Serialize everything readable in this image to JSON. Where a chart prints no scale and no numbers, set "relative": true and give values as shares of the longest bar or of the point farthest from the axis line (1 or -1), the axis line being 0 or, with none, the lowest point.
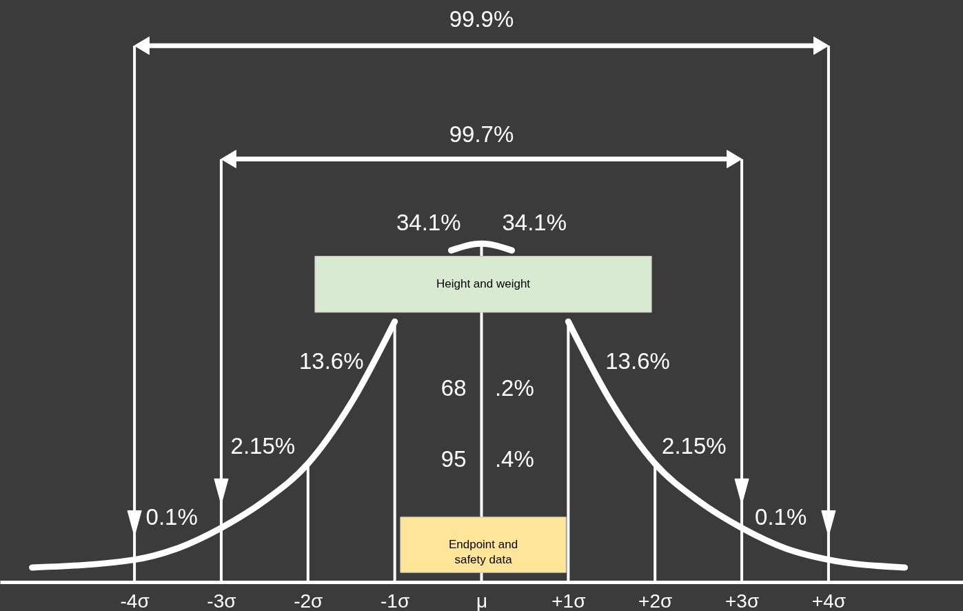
{
  "chart_data": {
    "type": "line",
    "relative": true,
    "marker": "none",
    "grid": false,
    "tick_labels": "x",
    "x": [
      -5.18,
      -4,
      -3.5,
      -3,
      -2.5,
      -2,
      -1.5,
      -1,
      -0.75,
      -0.5,
      -0.35,
      0,
      0.35,
      0.5,
      0.75,
      1,
      1.5,
      2,
      2.5,
      3,
      3.5,
      4,
      4.88
    ],
    "series": [
      {
        "color": "#ffffff",
        "values": [
          0.043,
          0.066,
          0.1,
          0.16,
          0.24,
          0.35,
          0.53,
          0.77,
          null,
          null,
          0.98,
          1,
          0.98,
          null,
          null,
          0.77,
          0.53,
          0.35,
          0.24,
          0.16,
          0.1,
          0.066,
          0.043
        ]
      }
    ],
    "xlim": [
      -5.55,
      5.55
    ],
    "xticks": [
      {
        "value": -4,
        "label": "-4σ"
      },
      {
        "value": -3,
        "label": "-3σ"
      },
      {
        "value": -2,
        "label": "-2σ"
      },
      {
        "value": -1,
        "label": "-1σ"
      },
      {
        "value": 0,
        "label": "μ"
      },
      {
        "value": 1,
        "label": "+1σ"
      },
      {
        "value": 2,
        "label": "+2σ"
      },
      {
        "value": 3,
        "label": "+3σ"
      },
      {
        "value": 4,
        "label": "+4σ"
      }
    ],
    "ref_lines": [
      {
        "axis": "x",
        "value": -4,
        "color": "#ffffff"
      },
      {
        "axis": "x",
        "value": -3,
        "color": "#ffffff"
      },
      {
        "axis": "x",
        "value": -2,
        "color": "#ffffff"
      },
      {
        "axis": "x",
        "value": -1,
        "color": "#ffffff"
      },
      {
        "axis": "x",
        "value": 0,
        "color": "#ffffff"
      },
      {
        "axis": "x",
        "value": 1,
        "color": "#ffffff"
      },
      {
        "axis": "x",
        "value": 2,
        "color": "#ffffff"
      },
      {
        "axis": "x",
        "value": 3,
        "color": "#ffffff"
      },
      {
        "axis": "x",
        "value": 4,
        "color": "#ffffff"
      }
    ],
    "annotations": [
      "99.9%",
      "99.7%",
      "34.1%",
      "34.1%",
      "13.6%",
      "13.6%",
      "2.15%",
      "2.15%",
      "0.1%",
      "0.1%",
      "68",
      ".2%",
      "95",
      ".4%",
      "Height and weight",
      "Endpoint and\nsafety data"
    ]
  }
}
